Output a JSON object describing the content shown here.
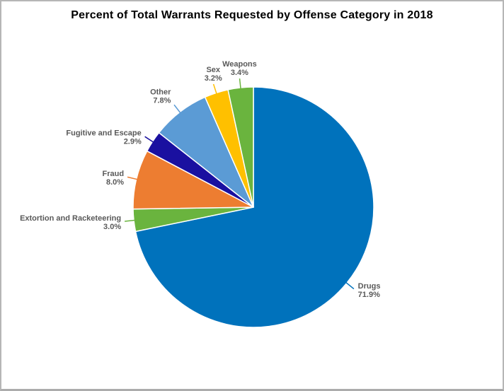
{
  "page": {
    "background": "#ffffff",
    "frame_border_color": "#b6b6b6"
  },
  "chart_data": {
    "type": "pie",
    "title": "Percent of Total Warrants Requested by Offense Category in 2018",
    "title_color": "#000000",
    "label_color": "#595959",
    "legend": "none",
    "start_angle_deg": 0,
    "direction": "clockwise",
    "labels_position": "outside-with-leader-lines",
    "slices": [
      {
        "label": "Drugs",
        "value": 71.9,
        "pct_label": "71.9%",
        "color": "#0072bc"
      },
      {
        "label": "Extortion and Racketeering",
        "value": 3.0,
        "pct_label": "3.0%",
        "color": "#6ab43e"
      },
      {
        "label": "Fraud",
        "value": 8.0,
        "pct_label": "8.0%",
        "color": "#ed7d31"
      },
      {
        "label": "Fugitive and Escape",
        "value": 2.9,
        "pct_label": "2.9%",
        "color": "#1a10a0"
      },
      {
        "label": "Other",
        "value": 7.8,
        "pct_label": "7.8%",
        "color": "#5b9bd5",
        "label_dy": -13
      },
      {
        "label": "Sex",
        "value": 3.2,
        "pct_label": "3.2%",
        "color": "#ffc000"
      },
      {
        "label": "Weapons",
        "value": 3.4,
        "pct_label": "3.4%",
        "color": "#6ab43e"
      }
    ]
  }
}
